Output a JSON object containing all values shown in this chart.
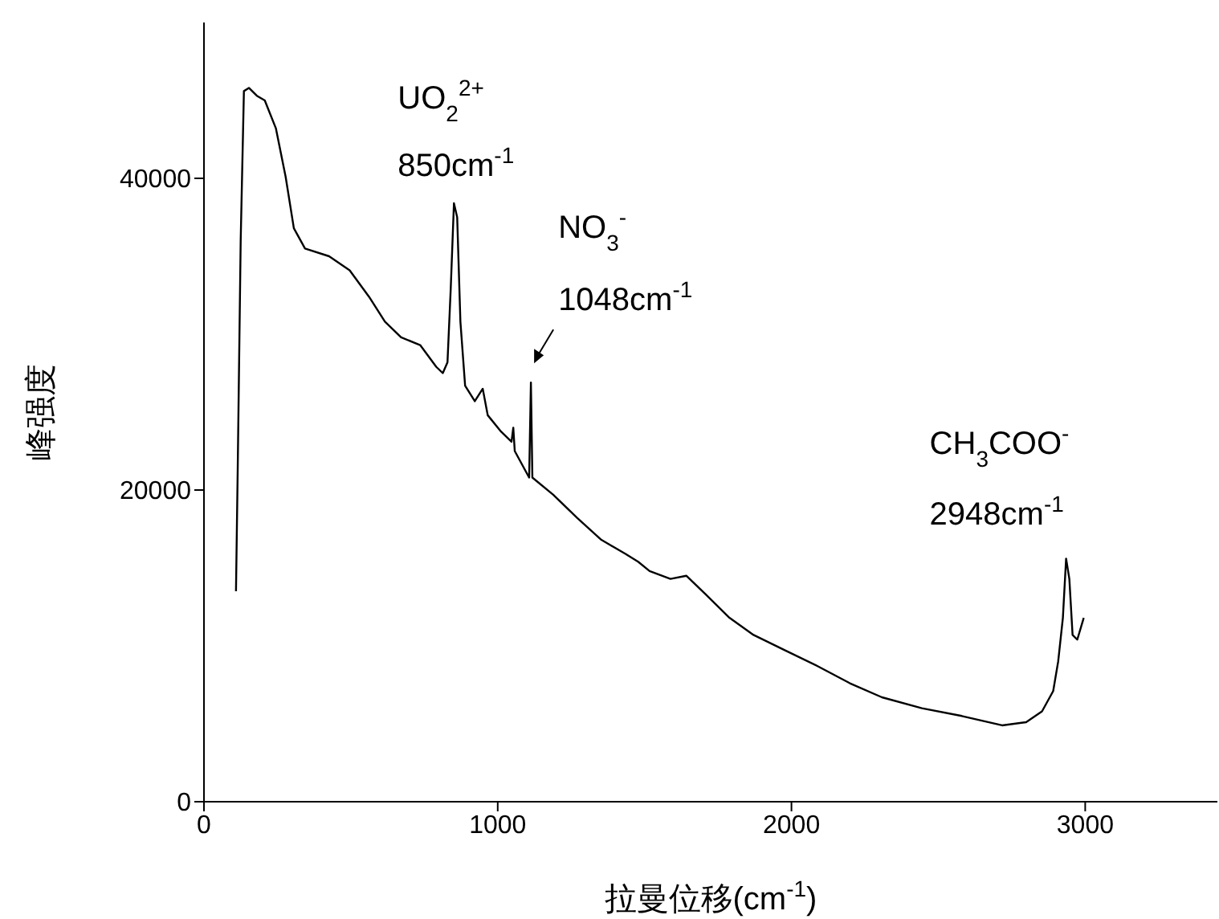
{
  "chart_data": {
    "type": "line",
    "xlabel": "拉曼位移(cm$^{-1}$)",
    "ylabel": "峰强度",
    "xlim": [
      0,
      3450
    ],
    "xticks": [
      0,
      1000,
      2000,
      3000
    ],
    "ylim": [
      0,
      50000
    ],
    "yticks": [
      0,
      20000,
      40000
    ],
    "marker": "none",
    "line_style": "solid",
    "x": [
      109,
      115,
      125,
      136,
      153,
      180,
      207,
      245,
      278,
      306,
      344,
      426,
      496,
      562,
      616,
      671,
      736,
      791,
      813,
      829,
      840,
      851,
      862,
      873,
      889,
      922,
      949,
      966,
      1009,
      1047,
      1053,
      1058,
      1107,
      1113,
      1118,
      1189,
      1271,
      1353,
      1435,
      1478,
      1517,
      1588,
      1642,
      1708,
      1789,
      1871,
      1980,
      2089,
      2199,
      2308,
      2444,
      2580,
      2717,
      2799,
      2853,
      2891,
      2908,
      2924,
      2935,
      2946,
      2957,
      2973,
      2995
    ],
    "series": [
      {
        "color": "#000000",
        "values": [
          13500,
          21500,
          36000,
          45600,
          45800,
          45300,
          45000,
          43200,
          40100,
          36800,
          35500,
          35000,
          34100,
          32400,
          30800,
          29800,
          29300,
          27900,
          27500,
          28200,
          32900,
          38400,
          37500,
          30800,
          26700,
          25700,
          26500,
          24800,
          23800,
          23100,
          24000,
          22500,
          20800,
          26900,
          20800,
          19700,
          18200,
          16800,
          15900,
          15400,
          14800,
          14300,
          14500,
          13300,
          11800,
          10700,
          9700,
          8700,
          7600,
          6700,
          6000,
          5500,
          4900,
          5100,
          5800,
          7100,
          9000,
          11800,
          15600,
          14300,
          10700,
          10400,
          11800
        ]
      }
    ],
    "annotations": [
      {
        "text": "UO$_{2}$$^{2+}$",
        "x": 851,
        "y": 38400
      },
      {
        "text": "850cm$^{-1}$",
        "x": 851,
        "y": 38400
      },
      "NO$_{3}$$^{-}$",
      {
        "text": "1048cm$^{-1}$",
        "x": 1113,
        "y": 26900
      },
      {
        "text": "CH$_{3}$COO$^{-}$",
        "x": 2935,
        "y": 15600
      },
      {
        "text": "2948cm$^{-1}$",
        "x": 2935,
        "y": 15600
      }
    ]
  }
}
